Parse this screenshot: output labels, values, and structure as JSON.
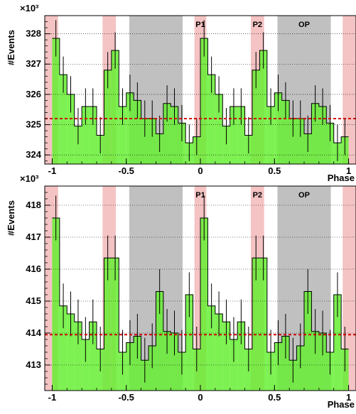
{
  "chart_data": [
    {
      "type": "bar",
      "exponent": "×10³",
      "xlabel": "Phase",
      "ylabel": "#Events",
      "xlim": [
        -1.05,
        1.05
      ],
      "ylim": [
        323.7,
        328.6
      ],
      "xticks": [
        -1,
        -0.5,
        0,
        0.5,
        1
      ],
      "xtick_labels": [
        "-1",
        "-0.5",
        "0",
        "0.5",
        "1"
      ],
      "yticks": [
        324,
        325,
        326,
        327,
        328
      ],
      "ytick_labels": [
        "324",
        "325",
        "326",
        "327",
        "328"
      ],
      "baseline": 325.2,
      "bins": [
        {
          "x0": -1.0,
          "x1": -0.95,
          "value": 327.85,
          "err": 0.6
        },
        {
          "x0": -0.95,
          "x1": -0.9,
          "value": 326.65,
          "err": 0.6
        },
        {
          "x0": -0.9,
          "x1": -0.85,
          "value": 326.0,
          "err": 0.6
        },
        {
          "x0": -0.85,
          "x1": -0.8,
          "value": 324.95,
          "err": 0.6
        },
        {
          "x0": -0.8,
          "x1": -0.75,
          "value": 325.6,
          "err": 0.6
        },
        {
          "x0": -0.75,
          "x1": -0.7,
          "value": 325.6,
          "err": 0.6
        },
        {
          "x0": -0.7,
          "x1": -0.65,
          "value": 324.65,
          "err": 0.6
        },
        {
          "x0": -0.65,
          "x1": -0.6,
          "value": 326.8,
          "err": 0.6
        },
        {
          "x0": -0.6,
          "x1": -0.55,
          "value": 327.45,
          "err": 0.6
        },
        {
          "x0": -0.55,
          "x1": -0.5,
          "value": 325.6,
          "err": 0.6
        },
        {
          "x0": -0.5,
          "x1": -0.45,
          "value": 326.05,
          "err": 0.6
        },
        {
          "x0": -0.45,
          "x1": -0.4,
          "value": 325.8,
          "err": 0.6
        },
        {
          "x0": -0.4,
          "x1": -0.35,
          "value": 325.2,
          "err": 0.6
        },
        {
          "x0": -0.35,
          "x1": -0.3,
          "value": 325.2,
          "err": 0.6
        },
        {
          "x0": -0.3,
          "x1": -0.25,
          "value": 324.7,
          "err": 0.6
        },
        {
          "x0": -0.25,
          "x1": -0.2,
          "value": 325.7,
          "err": 0.6
        },
        {
          "x0": -0.2,
          "x1": -0.15,
          "value": 325.6,
          "err": 0.6
        },
        {
          "x0": -0.15,
          "x1": -0.1,
          "value": 325.05,
          "err": 0.6
        },
        {
          "x0": -0.1,
          "x1": -0.05,
          "value": 324.4,
          "err": 0.6
        },
        {
          "x0": -0.05,
          "x1": 0.0,
          "value": 324.6,
          "err": 0.6
        },
        {
          "x0": 0.0,
          "x1": 0.05,
          "value": 327.85,
          "err": 0.6
        },
        {
          "x0": 0.05,
          "x1": 0.1,
          "value": 326.65,
          "err": 0.6
        },
        {
          "x0": 0.1,
          "x1": 0.15,
          "value": 326.0,
          "err": 0.6
        },
        {
          "x0": 0.15,
          "x1": 0.2,
          "value": 324.95,
          "err": 0.6
        },
        {
          "x0": 0.2,
          "x1": 0.25,
          "value": 325.6,
          "err": 0.6
        },
        {
          "x0": 0.25,
          "x1": 0.3,
          "value": 325.6,
          "err": 0.6
        },
        {
          "x0": 0.3,
          "x1": 0.35,
          "value": 324.65,
          "err": 0.6
        },
        {
          "x0": 0.35,
          "x1": 0.4,
          "value": 326.8,
          "err": 0.6
        },
        {
          "x0": 0.4,
          "x1": 0.45,
          "value": 327.45,
          "err": 0.6
        },
        {
          "x0": 0.45,
          "x1": 0.5,
          "value": 325.6,
          "err": 0.6
        },
        {
          "x0": 0.5,
          "x1": 0.55,
          "value": 326.05,
          "err": 0.6
        },
        {
          "x0": 0.55,
          "x1": 0.6,
          "value": 325.8,
          "err": 0.6
        },
        {
          "x0": 0.6,
          "x1": 0.65,
          "value": 325.2,
          "err": 0.6
        },
        {
          "x0": 0.65,
          "x1": 0.7,
          "value": 325.2,
          "err": 0.6
        },
        {
          "x0": 0.7,
          "x1": 0.75,
          "value": 324.7,
          "err": 0.6
        },
        {
          "x0": 0.75,
          "x1": 0.8,
          "value": 325.7,
          "err": 0.6
        },
        {
          "x0": 0.8,
          "x1": 0.85,
          "value": 325.6,
          "err": 0.6
        },
        {
          "x0": 0.85,
          "x1": 0.9,
          "value": 325.05,
          "err": 0.6
        },
        {
          "x0": 0.9,
          "x1": 0.95,
          "value": 324.4,
          "err": 0.6
        },
        {
          "x0": 0.95,
          "x1": 1.0,
          "value": 324.6,
          "err": 0.6
        }
      ],
      "regions": [
        {
          "label": "",
          "from": -1.05,
          "to": -0.96,
          "color": "#f2b8b8",
          "alpha": 0.85
        },
        {
          "label": "",
          "from": -0.66,
          "to": -0.57,
          "color": "#f2b8b8",
          "alpha": 0.85
        },
        {
          "label": "",
          "from": -0.48,
          "to": -0.12,
          "color": "#b0b0b0",
          "alpha": 0.8
        },
        {
          "label": "P1",
          "from": -0.04,
          "to": 0.04,
          "color": "#f2b8b8",
          "alpha": 0.85
        },
        {
          "label": "P2",
          "from": 0.34,
          "to": 0.43,
          "color": "#f2b8b8",
          "alpha": 0.85
        },
        {
          "label": "OP",
          "from": 0.52,
          "to": 0.88,
          "color": "#b0b0b0",
          "alpha": 0.8
        },
        {
          "label": "",
          "from": 0.96,
          "to": 1.05,
          "color": "#f2b8b8",
          "alpha": 0.85
        }
      ],
      "colors": {
        "fill": "#66ee33",
        "baseline": "#cc0000",
        "grid": "#000000"
      },
      "grid": true
    },
    {
      "type": "bar",
      "exponent": "×10³",
      "xlabel": "Phase",
      "ylabel": "#Events",
      "xlim": [
        -1.05,
        1.05
      ],
      "ylim": [
        412.2,
        418.6
      ],
      "xticks": [
        -1,
        -0.5,
        0,
        0.5,
        1
      ],
      "xtick_labels": [
        "-1",
        "-0.5",
        "0",
        "0.5",
        "1"
      ],
      "yticks": [
        413,
        414,
        415,
        416,
        417,
        418
      ],
      "ytick_labels": [
        "413",
        "414",
        "415",
        "416",
        "417",
        "418"
      ],
      "baseline": 413.95,
      "bins": [
        {
          "x0": -1.0,
          "x1": -0.95,
          "value": 417.6,
          "err": 0.7
        },
        {
          "x0": -0.95,
          "x1": -0.9,
          "value": 414.85,
          "err": 0.7
        },
        {
          "x0": -0.9,
          "x1": -0.85,
          "value": 414.6,
          "err": 0.7
        },
        {
          "x0": -0.85,
          "x1": -0.8,
          "value": 414.35,
          "err": 0.7
        },
        {
          "x0": -0.8,
          "x1": -0.75,
          "value": 413.8,
          "err": 0.7
        },
        {
          "x0": -0.75,
          "x1": -0.7,
          "value": 414.35,
          "err": 0.7
        },
        {
          "x0": -0.7,
          "x1": -0.65,
          "value": 413.5,
          "err": 0.7
        },
        {
          "x0": -0.65,
          "x1": -0.6,
          "value": 416.35,
          "err": 0.7
        },
        {
          "x0": -0.6,
          "x1": -0.55,
          "value": 416.35,
          "err": 0.7
        },
        {
          "x0": -0.55,
          "x1": -0.5,
          "value": 413.4,
          "err": 0.7
        },
        {
          "x0": -0.5,
          "x1": -0.45,
          "value": 413.7,
          "err": 0.7
        },
        {
          "x0": -0.45,
          "x1": -0.4,
          "value": 413.9,
          "err": 0.7
        },
        {
          "x0": -0.4,
          "x1": -0.35,
          "value": 413.15,
          "err": 0.7
        },
        {
          "x0": -0.35,
          "x1": -0.3,
          "value": 413.6,
          "err": 0.7
        },
        {
          "x0": -0.3,
          "x1": -0.25,
          "value": 415.3,
          "err": 0.7
        },
        {
          "x0": -0.25,
          "x1": -0.2,
          "value": 414.05,
          "err": 0.7
        },
        {
          "x0": -0.2,
          "x1": -0.15,
          "value": 414.0,
          "err": 0.7
        },
        {
          "x0": -0.15,
          "x1": -0.1,
          "value": 413.4,
          "err": 0.7
        },
        {
          "x0": -0.1,
          "x1": -0.05,
          "value": 415.2,
          "err": 0.7
        },
        {
          "x0": -0.05,
          "x1": 0.0,
          "value": 413.5,
          "err": 0.7
        },
        {
          "x0": 0.0,
          "x1": 0.05,
          "value": 417.6,
          "err": 0.7
        },
        {
          "x0": 0.05,
          "x1": 0.1,
          "value": 414.85,
          "err": 0.7
        },
        {
          "x0": 0.1,
          "x1": 0.15,
          "value": 414.6,
          "err": 0.7
        },
        {
          "x0": 0.15,
          "x1": 0.2,
          "value": 414.35,
          "err": 0.7
        },
        {
          "x0": 0.2,
          "x1": 0.25,
          "value": 413.8,
          "err": 0.7
        },
        {
          "x0": 0.25,
          "x1": 0.3,
          "value": 414.35,
          "err": 0.7
        },
        {
          "x0": 0.3,
          "x1": 0.35,
          "value": 413.5,
          "err": 0.7
        },
        {
          "x0": 0.35,
          "x1": 0.4,
          "value": 416.35,
          "err": 0.7
        },
        {
          "x0": 0.4,
          "x1": 0.45,
          "value": 416.35,
          "err": 0.7
        },
        {
          "x0": 0.45,
          "x1": 0.5,
          "value": 413.4,
          "err": 0.7
        },
        {
          "x0": 0.5,
          "x1": 0.55,
          "value": 413.7,
          "err": 0.7
        },
        {
          "x0": 0.55,
          "x1": 0.6,
          "value": 413.9,
          "err": 0.7
        },
        {
          "x0": 0.6,
          "x1": 0.65,
          "value": 413.15,
          "err": 0.7
        },
        {
          "x0": 0.65,
          "x1": 0.7,
          "value": 413.6,
          "err": 0.7
        },
        {
          "x0": 0.7,
          "x1": 0.75,
          "value": 415.3,
          "err": 0.7
        },
        {
          "x0": 0.75,
          "x1": 0.8,
          "value": 414.05,
          "err": 0.7
        },
        {
          "x0": 0.8,
          "x1": 0.85,
          "value": 414.0,
          "err": 0.7
        },
        {
          "x0": 0.85,
          "x1": 0.9,
          "value": 413.4,
          "err": 0.7
        },
        {
          "x0": 0.9,
          "x1": 0.95,
          "value": 415.2,
          "err": 0.7
        },
        {
          "x0": 0.95,
          "x1": 1.0,
          "value": 413.5,
          "err": 0.7
        }
      ],
      "regions": [
        {
          "label": "",
          "from": -1.05,
          "to": -0.96,
          "color": "#f2b8b8",
          "alpha": 0.85
        },
        {
          "label": "",
          "from": -0.66,
          "to": -0.57,
          "color": "#f2b8b8",
          "alpha": 0.85
        },
        {
          "label": "",
          "from": -0.48,
          "to": -0.12,
          "color": "#b0b0b0",
          "alpha": 0.8
        },
        {
          "label": "P1",
          "from": -0.04,
          "to": 0.04,
          "color": "#f2b8b8",
          "alpha": 0.85
        },
        {
          "label": "P2",
          "from": 0.34,
          "to": 0.43,
          "color": "#f2b8b8",
          "alpha": 0.85
        },
        {
          "label": "OP",
          "from": 0.52,
          "to": 0.88,
          "color": "#b0b0b0",
          "alpha": 0.8
        },
        {
          "label": "",
          "from": 0.96,
          "to": 1.05,
          "color": "#f2b8b8",
          "alpha": 0.85
        }
      ],
      "colors": {
        "fill": "#66ee33",
        "baseline": "#cc0000",
        "grid": "#000000"
      },
      "grid": true
    }
  ]
}
